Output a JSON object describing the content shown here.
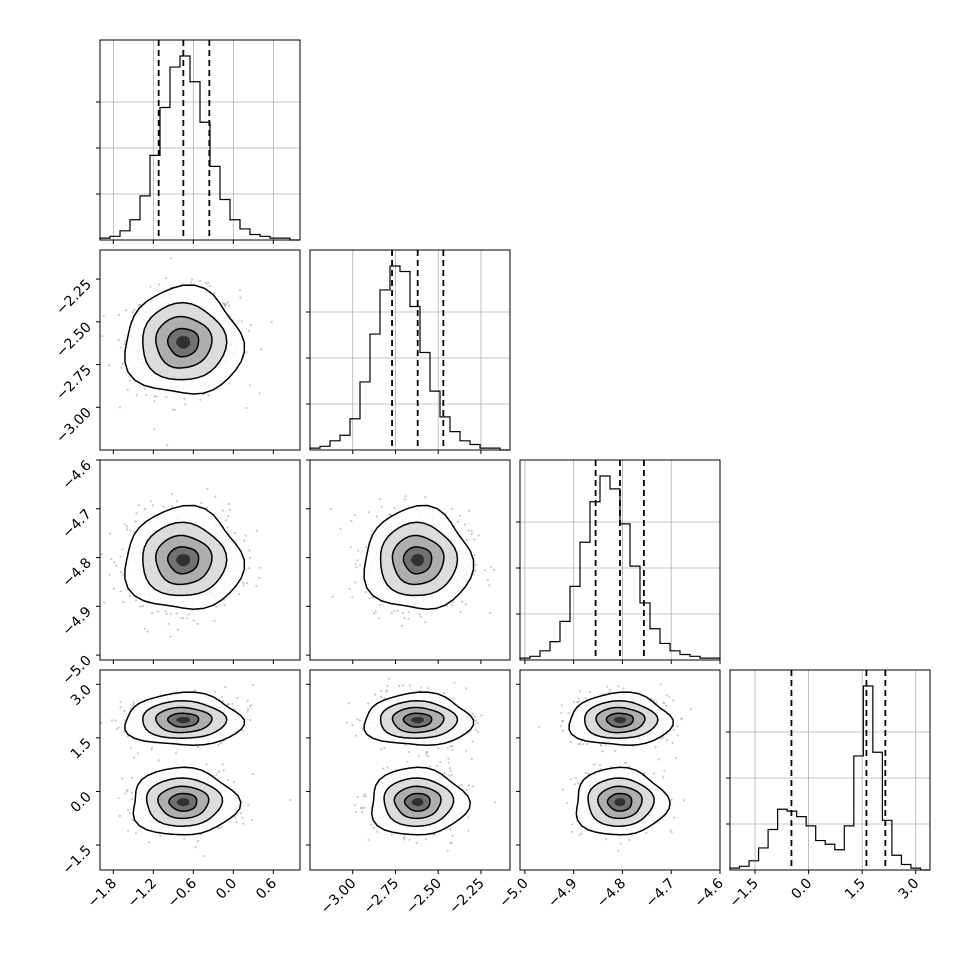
{
  "chart_data": {
    "type": "corner",
    "grid": true,
    "parameters": [
      {
        "range": [
          -2.0,
          1.0
        ],
        "ticks": [
          -1.8,
          -1.2,
          -0.6,
          0.0,
          0.6
        ],
        "tick_labels": [
          "−1.8",
          "−1.2",
          "−0.6",
          "0.0",
          "0.6"
        ],
        "mean": -0.75,
        "sd": 0.42,
        "quantiles": [
          -1.12,
          -0.75,
          -0.36
        ],
        "hist_counts": [
          1,
          2,
          5,
          11,
          24,
          46,
          72,
          94,
          100,
          86,
          64,
          40,
          22,
          11,
          6,
          3,
          2,
          1,
          1,
          0
        ]
      },
      {
        "range": [
          -3.25,
          -2.08
        ],
        "ticks": [
          -3.0,
          -2.75,
          -2.5,
          -2.25
        ],
        "tick_labels": [
          "−3.00",
          "−2.75",
          "−2.50",
          "−2.25"
        ],
        "mean": -2.62,
        "sd": 0.15,
        "quantiles": [
          -2.77,
          -2.62,
          -2.47
        ],
        "hist_counts": [
          1,
          2,
          5,
          8,
          17,
          37,
          63,
          87,
          100,
          97,
          78,
          53,
          32,
          18,
          10,
          5,
          3,
          1,
          1,
          0
        ]
      },
      {
        "range": [
          -5.01,
          -4.6
        ],
        "ticks": [
          -5.0,
          -4.9,
          -4.8,
          -4.7,
          -4.6
        ],
        "tick_labels": [
          "−5.0",
          "−4.9",
          "−4.8",
          "−4.7",
          "−4.6"
        ],
        "y_tick_labels": [
          "−4.6",
          "−4.7",
          "−4.8",
          "−4.9",
          "−5.0"
        ],
        "mean": -4.805,
        "sd": 0.05,
        "quantiles": [
          -4.855,
          -4.805,
          -4.756
        ],
        "hist_counts": [
          1,
          2,
          5,
          10,
          21,
          40,
          64,
          86,
          100,
          93,
          74,
          51,
          31,
          17,
          9,
          5,
          3,
          2,
          1,
          1
        ]
      },
      {
        "range": [
          -2.2,
          3.4
        ],
        "ticks": [
          -1.5,
          0.0,
          1.5,
          3.0
        ],
        "tick_labels": [
          "−1.5",
          "0.0",
          "1.5",
          "3.0"
        ],
        "quantiles": [
          -0.48,
          1.62,
          2.15
        ],
        "hist_counts": [
          1,
          2,
          5,
          12,
          22,
          33,
          32,
          29,
          24,
          16,
          14,
          11,
          24,
          62,
          100,
          64,
          27,
          8,
          3,
          1,
          0
        ]
      }
    ],
    "param4_modes": [
      {
        "mean": 2.0,
        "sd": 0.35
      },
      {
        "mean": -0.3,
        "sd": 0.5
      }
    ]
  }
}
